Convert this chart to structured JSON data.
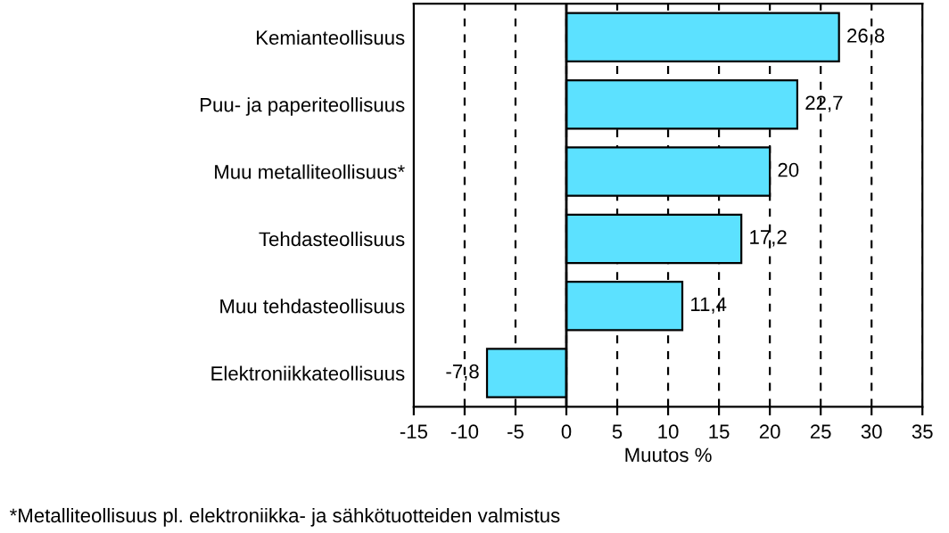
{
  "chart_data": {
    "type": "bar",
    "orientation": "horizontal",
    "categories": [
      "Kemianteollisuus",
      "Puu- ja paperiteollisuus",
      "Muu metalliteollisuus*",
      "Tehdasteollisuus",
      "Muu tehdasteollisuus",
      "Elektroniikkateollisuus"
    ],
    "values": [
      26.8,
      22.7,
      20,
      17.2,
      11.4,
      -7.8
    ],
    "value_labels": [
      "26,8",
      "22,7",
      "20",
      "17,2",
      "11,4",
      "-7,8"
    ],
    "color": "#5ce1ff",
    "xlim": [
      -15,
      35
    ],
    "xticks": [
      -15,
      -10,
      -5,
      0,
      5,
      10,
      15,
      20,
      25,
      30,
      35
    ],
    "xlabel": "Muutos %",
    "grid": "x",
    "ref_lines": [
      {
        "axis": "x",
        "value": 0,
        "color": "#000000",
        "line_style": "solid"
      }
    ],
    "annotations": [
      "*Metalliteollisuus pl. elektroniikka- ja sähkötuotteiden valmistus"
    ]
  }
}
